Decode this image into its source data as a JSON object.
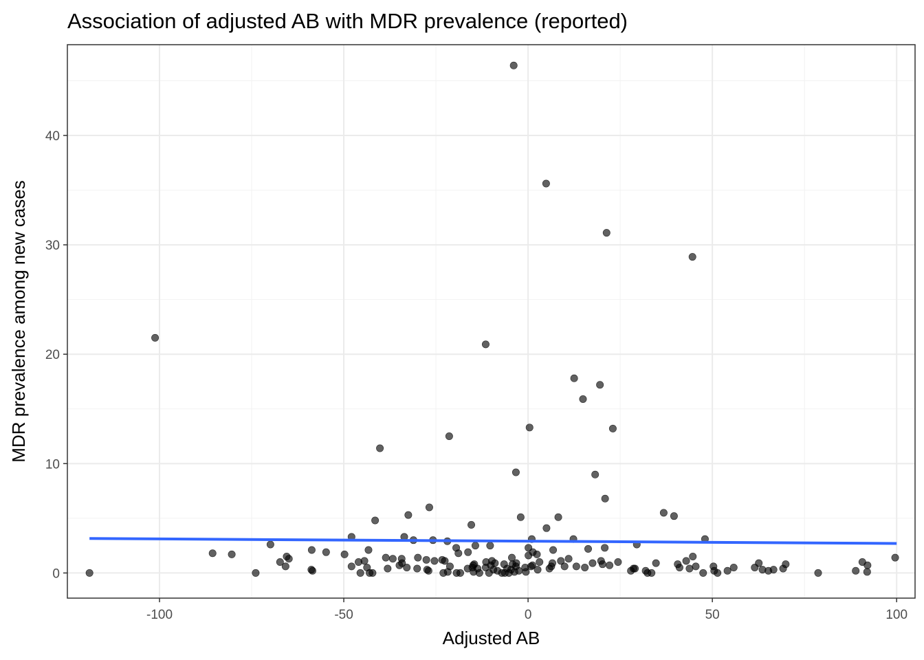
{
  "chart_data": {
    "type": "scatter",
    "title": "Association of adjusted AB with MDR prevalence (reported)",
    "xlabel": "Adjusted AB",
    "ylabel": "MDR prevalence among new cases",
    "xlim": [
      -125,
      105
    ],
    "ylim": [
      -2.3,
      48.3
    ],
    "x_ticks": [
      -100,
      -50,
      0,
      50,
      100
    ],
    "x_tick_labels": [
      "-100",
      "-50",
      "0",
      "50",
      "100"
    ],
    "y_ticks": [
      0,
      10,
      20,
      30,
      40
    ],
    "y_tick_labels": [
      "0",
      "10",
      "20",
      "30",
      "40"
    ],
    "x_minor": [
      -125,
      -75,
      -25,
      25,
      75
    ],
    "y_minor": [
      5,
      15,
      25,
      35,
      45
    ],
    "grid": true,
    "point_color": "#000000",
    "trend_color": "#3366ff",
    "trend_line": {
      "x": [
        -119,
        100
      ],
      "y": [
        3.15,
        2.7
      ]
    },
    "points": [
      [
        -3.9,
        46.4
      ],
      [
        4.9,
        35.6
      ],
      [
        21.3,
        31.1
      ],
      [
        44.6,
        28.9
      ],
      [
        -101.2,
        21.5
      ],
      [
        -11.5,
        20.9
      ],
      [
        12.5,
        17.8
      ],
      [
        19.5,
        17.2
      ],
      [
        14.9,
        15.9
      ],
      [
        0.4,
        13.3
      ],
      [
        23.0,
        13.2
      ],
      [
        -21.4,
        12.5
      ],
      [
        -40.2,
        11.4
      ],
      [
        18.2,
        9.0
      ],
      [
        -3.3,
        9.2
      ],
      [
        20.9,
        6.8
      ],
      [
        -26.8,
        6.0
      ],
      [
        36.8,
        5.5
      ],
      [
        39.6,
        5.2
      ],
      [
        -32.5,
        5.3
      ],
      [
        -2.0,
        5.1
      ],
      [
        8.2,
        5.1
      ],
      [
        -41.5,
        4.8
      ],
      [
        -15.4,
        4.4
      ],
      [
        5.0,
        4.1
      ],
      [
        -47.9,
        3.3
      ],
      [
        -33.6,
        3.3
      ],
      [
        -31.1,
        3.0
      ],
      [
        -25.8,
        3.0
      ],
      [
        -21.9,
        2.9
      ],
      [
        1.0,
        3.1
      ],
      [
        12.3,
        3.1
      ],
      [
        48.0,
        3.1
      ],
      [
        29.5,
        2.6
      ],
      [
        -14.3,
        2.5
      ],
      [
        -10.3,
        2.5
      ],
      [
        -69.9,
        2.6
      ],
      [
        -19.5,
        2.3
      ],
      [
        0.1,
        2.3
      ],
      [
        6.8,
        2.1
      ],
      [
        16.3,
        2.2
      ],
      [
        20.8,
        2.3
      ],
      [
        -43.3,
        2.1
      ],
      [
        -58.7,
        2.1
      ],
      [
        -54.8,
        1.9
      ],
      [
        -85.6,
        1.8
      ],
      [
        -80.4,
        1.7
      ],
      [
        -49.8,
        1.7
      ],
      [
        -38.6,
        1.4
      ],
      [
        -36.7,
        1.3
      ],
      [
        -34.3,
        1.3
      ],
      [
        -29.9,
        1.4
      ],
      [
        -27.6,
        1.2
      ],
      [
        -25.4,
        1.1
      ],
      [
        -23.3,
        1.2
      ],
      [
        -22.6,
        1.1
      ],
      [
        -18.9,
        1.8
      ],
      [
        -16.3,
        1.9
      ],
      [
        -14.6,
        0.8
      ],
      [
        -11.4,
        1.0
      ],
      [
        -9.8,
        1.1
      ],
      [
        -9.0,
        0.9
      ],
      [
        -6.5,
        0.8
      ],
      [
        -4.4,
        1.4
      ],
      [
        -3.2,
        0.9
      ],
      [
        0.1,
        1.6
      ],
      [
        1.3,
        1.9
      ],
      [
        2.4,
        1.7
      ],
      [
        3.1,
        1.0
      ],
      [
        6.6,
        0.9
      ],
      [
        8.9,
        1.1
      ],
      [
        11.0,
        1.3
      ],
      [
        13.1,
        0.6
      ],
      [
        17.5,
        0.9
      ],
      [
        19.8,
        1.1
      ],
      [
        24.4,
        1.0
      ],
      [
        28.6,
        0.4
      ],
      [
        34.7,
        0.9
      ],
      [
        40.6,
        0.8
      ],
      [
        42.9,
        1.1
      ],
      [
        44.7,
        1.5
      ],
      [
        45.5,
        0.6
      ],
      [
        50.3,
        0.6
      ],
      [
        55.8,
        0.5
      ],
      [
        62.6,
        0.9
      ],
      [
        69.9,
        0.8
      ],
      [
        90.7,
        1.0
      ],
      [
        92.1,
        0.7
      ],
      [
        99.6,
        1.4
      ],
      [
        -67.3,
        1.0
      ],
      [
        -65.5,
        1.5
      ],
      [
        -64.9,
        1.3
      ],
      [
        -65.8,
        0.6
      ],
      [
        -58.8,
        0.3
      ],
      [
        -58.5,
        0.2
      ],
      [
        -47.9,
        0.6
      ],
      [
        -46.0,
        1.0
      ],
      [
        -44.4,
        1.1
      ],
      [
        -43.7,
        0.5
      ],
      [
        -45.5,
        0.0
      ],
      [
        -43.0,
        0.0
      ],
      [
        -42.2,
        0.0
      ],
      [
        -38.1,
        0.4
      ],
      [
        -34.9,
        0.7
      ],
      [
        -34.2,
        0.9
      ],
      [
        -32.9,
        0.5
      ],
      [
        -30.1,
        0.4
      ],
      [
        -27.4,
        0.3
      ],
      [
        -27.0,
        0.2
      ],
      [
        -23.0,
        0.0
      ],
      [
        -21.2,
        0.6
      ],
      [
        -21.8,
        0.1
      ],
      [
        -19.4,
        0.0
      ],
      [
        -18.4,
        0.0
      ],
      [
        -16.4,
        0.4
      ],
      [
        -15.1,
        0.5
      ],
      [
        -14.9,
        0.7
      ],
      [
        -14.8,
        0.1
      ],
      [
        -13.7,
        0.4
      ],
      [
        -13.2,
        0.0
      ],
      [
        -11.5,
        0.5
      ],
      [
        -10.6,
        0.0
      ],
      [
        -10.1,
        0.7
      ],
      [
        -9.4,
        0.3
      ],
      [
        -8.3,
        0.2
      ],
      [
        -7.1,
        0.0
      ],
      [
        -6.3,
        0.0
      ],
      [
        -5.7,
        0.4
      ],
      [
        -5.2,
        0.0
      ],
      [
        -4.6,
        0.3
      ],
      [
        -4.2,
        0.8
      ],
      [
        -3.7,
        0.1
      ],
      [
        -3.3,
        0.6
      ],
      [
        -2.5,
        0.2
      ],
      [
        -0.8,
        0.5
      ],
      [
        -0.6,
        0.1
      ],
      [
        0.8,
        0.6
      ],
      [
        1.2,
        0.7
      ],
      [
        2.6,
        0.3
      ],
      [
        5.8,
        0.4
      ],
      [
        6.3,
        0.6
      ],
      [
        9.9,
        0.6
      ],
      [
        15.4,
        0.5
      ],
      [
        20.2,
        0.8
      ],
      [
        22.1,
        0.7
      ],
      [
        27.9,
        0.2
      ],
      [
        29.0,
        0.4
      ],
      [
        31.9,
        0.2
      ],
      [
        32.4,
        0.0
      ],
      [
        33.5,
        0.0
      ],
      [
        41.1,
        0.5
      ],
      [
        43.8,
        0.4
      ],
      [
        47.5,
        0.0
      ],
      [
        50.5,
        0.2
      ],
      [
        51.4,
        0.0
      ],
      [
        54.1,
        0.2
      ],
      [
        61.5,
        0.5
      ],
      [
        63.6,
        0.3
      ],
      [
        65.2,
        0.2
      ],
      [
        66.6,
        0.3
      ],
      [
        69.2,
        0.4
      ],
      [
        78.7,
        0.0
      ],
      [
        88.9,
        0.2
      ],
      [
        92.0,
        0.1
      ],
      [
        -73.9,
        0.0
      ],
      [
        -119.0,
        0.0
      ]
    ]
  }
}
